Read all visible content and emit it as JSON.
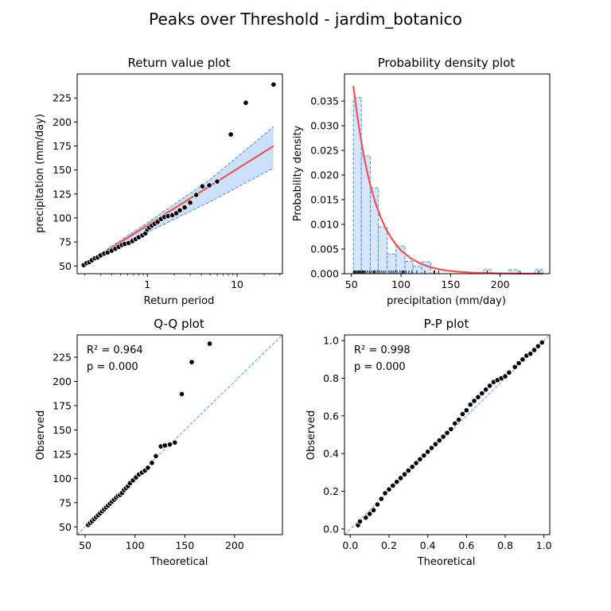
{
  "figure": {
    "title": "Peaks over Threshold - jardim_botanico"
  },
  "colors": {
    "fit": "#f0524d",
    "band": "#cde0fb",
    "band_edge": "#4a90e8",
    "points": "#000000",
    "point_edge": "#ffffff",
    "bars": "#d7e6fb",
    "ref_line": "#5a9be8"
  },
  "chart_data": [
    {
      "type": "scatter",
      "title": "Return value plot",
      "xlabel": "Return period",
      "ylabel": "precipitation (mm/day)",
      "xscale": "log",
      "xlim": [
        0.165,
        32
      ],
      "ylim": [
        42,
        250
      ],
      "xticks": [
        1,
        10
      ],
      "xtick_labels": [
        "1",
        "10"
      ],
      "yticks": [
        50,
        75,
        100,
        125,
        150,
        175,
        200,
        225
      ],
      "observed": {
        "x": [
          0.195,
          0.21,
          0.225,
          0.24,
          0.26,
          0.28,
          0.3,
          0.33,
          0.36,
          0.4,
          0.44,
          0.48,
          0.52,
          0.56,
          0.62,
          0.68,
          0.74,
          0.8,
          0.88,
          0.95,
          1.0,
          1.05,
          1.12,
          1.2,
          1.3,
          1.42,
          1.55,
          1.7,
          1.9,
          2.1,
          2.3,
          2.6,
          3.0,
          3.5,
          4.1,
          4.9,
          6.0,
          8.5,
          12.5,
          25.5
        ],
        "y": [
          51,
          53,
          54,
          56,
          58,
          59,
          61,
          63,
          64,
          66,
          68,
          70,
          72,
          73,
          74,
          76,
          78,
          80,
          82,
          84,
          88,
          90,
          92,
          94,
          96,
          99,
          101,
          102,
          103,
          105,
          108,
          111,
          116,
          124,
          133,
          134,
          138,
          187,
          220,
          239
        ]
      },
      "fit": {
        "x": [
          0.19,
          25.5
        ],
        "y": [
          50,
          175
        ]
      },
      "band_upper": {
        "x": [
          0.19,
          1,
          5,
          25.5
        ],
        "y": [
          51,
          95,
          140,
          195
        ]
      },
      "band_lower": {
        "x": [
          0.19,
          1,
          5,
          25.5
        ],
        "y": [
          49,
          85,
          117,
          152
        ]
      },
      "grid": false
    },
    {
      "type": "bar",
      "title": "Probability density plot",
      "xlabel": "precipitation (mm/day)",
      "ylabel": "Probability density",
      "xlim": [
        43,
        250
      ],
      "ylim": [
        0,
        0.0405
      ],
      "xticks": [
        50,
        100,
        150,
        200
      ],
      "yticks": [
        0.0,
        0.005,
        0.01,
        0.015,
        0.02,
        0.025,
        0.03,
        0.035
      ],
      "ytick_labels": [
        "0.000",
        "0.005",
        "0.010",
        "0.015",
        "0.020",
        "0.025",
        "0.030",
        "0.035"
      ],
      "bin_edges": [
        52,
        60,
        69,
        77,
        86,
        95,
        104,
        112,
        121,
        130,
        139,
        148,
        156,
        165,
        174,
        183,
        191,
        200,
        209,
        218,
        227,
        235,
        243
      ],
      "bar_values": [
        0.0357,
        0.0239,
        0.0174,
        0.0095,
        0.004,
        0.0056,
        0.0025,
        0.0015,
        0.0024,
        0.0,
        0.0,
        0.0,
        0.0,
        0.0,
        0.0,
        0.0008,
        0.0,
        0.0,
        0.0008,
        0.0,
        0.0,
        0.0008
      ],
      "density_curve": {
        "x": [
          52,
          55,
          58,
          62,
          66,
          70,
          75,
          80,
          85,
          90,
          95,
          100,
          110,
          120,
          130,
          140,
          150,
          160,
          170,
          185,
          200,
          220,
          243
        ],
        "y": [
          0.0381,
          0.0333,
          0.0292,
          0.0244,
          0.0205,
          0.0172,
          0.0139,
          0.0112,
          0.009,
          0.0073,
          0.0059,
          0.0047,
          0.0031,
          0.002,
          0.0013,
          0.00084,
          0.00055,
          0.00036,
          0.00023,
          0.00012,
          6e-05,
          2e-05,
          1e-05
        ]
      },
      "rug": [
        52,
        53,
        54,
        55,
        56,
        57,
        58,
        59,
        60,
        61,
        62,
        63,
        64,
        66,
        68,
        70,
        72,
        73,
        74,
        76,
        78,
        80,
        82,
        84,
        88,
        90,
        92,
        94,
        96,
        99,
        101,
        102,
        103,
        105,
        108,
        111,
        116,
        124,
        133,
        134,
        138,
        187,
        220,
        239
      ],
      "grid": false
    },
    {
      "type": "scatter",
      "title": "Q-Q plot",
      "xlabel": "Theoretical",
      "ylabel": "Observed",
      "xlim": [
        42,
        248
      ],
      "ylim": [
        42,
        248
      ],
      "xticks": [
        50,
        100,
        150,
        200
      ],
      "yticks": [
        50,
        75,
        100,
        125,
        150,
        175,
        200,
        225
      ],
      "annotation": [
        "R² = 0.964",
        "p = 0.000"
      ],
      "x": [
        53,
        55,
        57,
        59,
        61,
        63,
        65,
        67,
        69,
        71,
        73,
        75,
        77,
        79,
        81,
        83,
        85,
        87,
        89,
        91,
        93,
        95,
        98,
        101,
        104,
        107,
        110,
        113,
        117,
        121,
        126,
        130,
        135,
        140,
        147,
        157,
        175
      ],
      "y": [
        52,
        54,
        56,
        58,
        60,
        62,
        64,
        66,
        68,
        70,
        72,
        74,
        76,
        78,
        80,
        82,
        83,
        85,
        88,
        90,
        92,
        95,
        98,
        101,
        104,
        106,
        108,
        111,
        116,
        123,
        133,
        134,
        135,
        137,
        187,
        220,
        239
      ],
      "reference_line": [
        [
          42,
          42
        ],
        [
          248,
          248
        ]
      ],
      "grid": false
    },
    {
      "type": "scatter",
      "title": "P-P plot",
      "xlabel": "Theoretical",
      "ylabel": "Observed",
      "xlim": [
        -0.03,
        1.03
      ],
      "ylim": [
        -0.03,
        1.03
      ],
      "xticks": [
        0.0,
        0.2,
        0.4,
        0.6,
        0.8,
        1.0
      ],
      "xtick_labels": [
        "0.0",
        "0.2",
        "0.4",
        "0.6",
        "0.8",
        "1.0"
      ],
      "yticks": [
        0.0,
        0.2,
        0.4,
        0.6,
        0.8,
        1.0
      ],
      "ytick_labels": [
        "0.0",
        "0.2",
        "0.4",
        "0.6",
        "0.8",
        "1.0"
      ],
      "annotation": [
        "R² = 0.998",
        "p = 0.000"
      ],
      "x": [
        0.04,
        0.05,
        0.08,
        0.1,
        0.12,
        0.14,
        0.16,
        0.18,
        0.2,
        0.22,
        0.24,
        0.26,
        0.28,
        0.3,
        0.32,
        0.34,
        0.36,
        0.38,
        0.4,
        0.42,
        0.44,
        0.46,
        0.48,
        0.5,
        0.52,
        0.54,
        0.56,
        0.58,
        0.6,
        0.62,
        0.64,
        0.66,
        0.68,
        0.7,
        0.72,
        0.74,
        0.76,
        0.78,
        0.8,
        0.82,
        0.85,
        0.87,
        0.89,
        0.91,
        0.93,
        0.95,
        0.97,
        0.99
      ],
      "y": [
        0.02,
        0.04,
        0.06,
        0.08,
        0.1,
        0.13,
        0.16,
        0.19,
        0.21,
        0.23,
        0.25,
        0.27,
        0.29,
        0.31,
        0.33,
        0.35,
        0.37,
        0.39,
        0.41,
        0.43,
        0.45,
        0.47,
        0.49,
        0.51,
        0.53,
        0.56,
        0.58,
        0.61,
        0.63,
        0.66,
        0.68,
        0.7,
        0.72,
        0.74,
        0.76,
        0.78,
        0.79,
        0.8,
        0.81,
        0.83,
        0.86,
        0.88,
        0.9,
        0.92,
        0.93,
        0.95,
        0.97,
        0.99
      ],
      "reference_line": [
        [
          -0.03,
          -0.03
        ],
        [
          1.03,
          1.03
        ]
      ],
      "grid": false
    }
  ]
}
